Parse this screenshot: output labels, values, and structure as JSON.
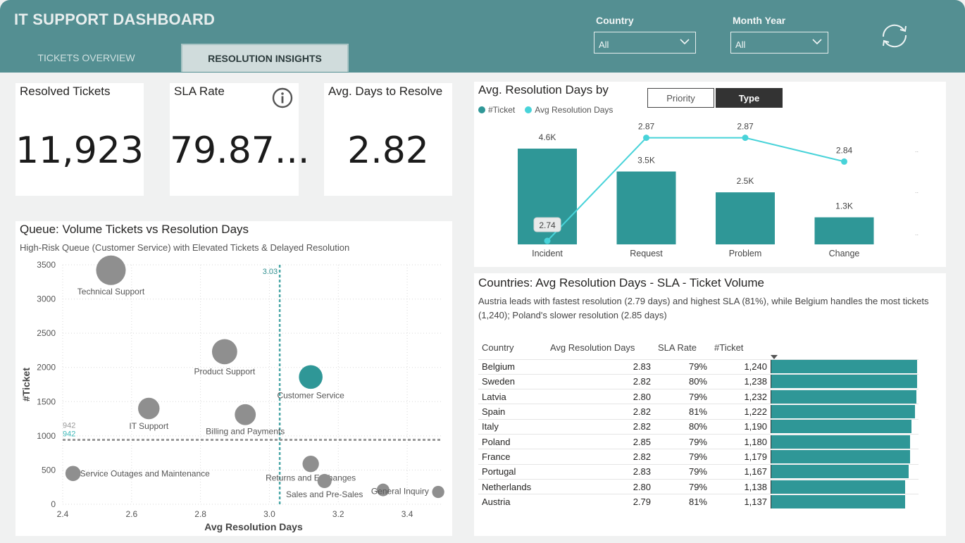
{
  "header": {
    "title": "IT SUPPORT DASHBOARD",
    "tabs": [
      {
        "label": "TICKETS OVERVIEW",
        "active": false
      },
      {
        "label": "RESOLUTION INSIGHTS",
        "active": true
      }
    ],
    "filters": [
      {
        "label": "Country",
        "value": "All"
      },
      {
        "label": "Month Year",
        "value": "All"
      }
    ],
    "refresh_icon": "refresh-icon"
  },
  "kpis": [
    {
      "title": "Resolved Tickets",
      "value": "11,923"
    },
    {
      "title": "SLA Rate",
      "value": "79.87...",
      "icon": "info-icon"
    },
    {
      "title": "Avg. Days to Resolve",
      "value": "2.82"
    }
  ],
  "resolution_chart": {
    "title": "Avg. Resolution Days by",
    "toggle": [
      "Priority",
      "Type"
    ],
    "active_toggle": "Type",
    "legend": [
      "#Ticket",
      "Avg Resolution Days"
    ],
    "colors": {
      "bar": "#2f9797",
      "line": "#48d3d9"
    }
  },
  "queue_chart": {
    "title": "Queue: Volume Tickets vs Resolution Days",
    "subtitle": "High-Risk Queue (Customer Service) with Elevated Tickets & Delayed Resolution",
    "ref_x_label": "3.03",
    "ref_y_label_a": "942",
    "ref_y_label_b": "942"
  },
  "countries": {
    "title": "Countries: Avg Resolution Days - SLA - Ticket Volume",
    "subtitle": "Austria leads with fastest resolution (2.79 days) and highest SLA (81%), while Belgium handles the most tickets (1,240); Poland's slower resolution (2.85 days)",
    "columns": [
      "Country",
      "Avg Resolution Days",
      "SLA Rate",
      "#Ticket"
    ],
    "rows": [
      {
        "country": "Belgium",
        "days": "2.83",
        "sla": "79%",
        "tickets": "1,240",
        "n": 1240
      },
      {
        "country": "Sweden",
        "days": "2.82",
        "sla": "80%",
        "tickets": "1,238",
        "n": 1238
      },
      {
        "country": "Latvia",
        "days": "2.80",
        "sla": "79%",
        "tickets": "1,232",
        "n": 1232
      },
      {
        "country": "Spain",
        "days": "2.82",
        "sla": "81%",
        "tickets": "1,222",
        "n": 1222
      },
      {
        "country": "Italy",
        "days": "2.82",
        "sla": "80%",
        "tickets": "1,190",
        "n": 1190
      },
      {
        "country": "Poland",
        "days": "2.85",
        "sla": "79%",
        "tickets": "1,180",
        "n": 1180
      },
      {
        "country": "France",
        "days": "2.82",
        "sla": "79%",
        "tickets": "1,179",
        "n": 1179
      },
      {
        "country": "Portugal",
        "days": "2.83",
        "sla": "79%",
        "tickets": "1,167",
        "n": 1167
      },
      {
        "country": "Netherlands",
        "days": "2.80",
        "sla": "79%",
        "tickets": "1,138",
        "n": 1138
      },
      {
        "country": "Austria",
        "days": "2.79",
        "sla": "81%",
        "tickets": "1,137",
        "n": 1137
      }
    ]
  },
  "chart_data": [
    {
      "type": "bar",
      "title": "Avg. Resolution Days by",
      "categories": [
        "Incident",
        "Request",
        "Problem",
        "Change"
      ],
      "series": [
        {
          "name": "#Ticket",
          "values": [
            4600,
            3500,
            2500,
            1300
          ],
          "labels": [
            "4.6K",
            "3.5K",
            "2.5K",
            "1.3K"
          ]
        },
        {
          "name": "Avg Resolution Days",
          "type": "line",
          "values": [
            2.74,
            2.87,
            2.87,
            2.84
          ],
          "labels": [
            "2.74",
            "2.87",
            "2.87",
            "2.84"
          ]
        }
      ],
      "legend": "top-left"
    },
    {
      "type": "scatter",
      "title": "Queue: Volume Tickets vs Resolution Days",
      "xlabel": "Avg Resolution Days",
      "ylabel": "#Ticket",
      "xlim": [
        2.4,
        3.5
      ],
      "ylim": [
        0,
        3500
      ],
      "xticks": [
        "2.4",
        "2.6",
        "2.8",
        "3.0",
        "3.2",
        "3.4"
      ],
      "yticks": [
        "0",
        "500",
        "1000",
        "1500",
        "2000",
        "2500",
        "3000",
        "3500"
      ],
      "grid": true,
      "reference_lines": {
        "x": 3.03,
        "y": 942
      },
      "points": [
        {
          "label": "Technical Support",
          "x": 2.54,
          "y": 3420,
          "size": 3420,
          "highlight": false
        },
        {
          "label": "Product Support",
          "x": 2.87,
          "y": 2230,
          "size": 2230,
          "highlight": false
        },
        {
          "label": "Customer Service",
          "x": 3.12,
          "y": 1860,
          "size": 1860,
          "highlight": true
        },
        {
          "label": "IT Support",
          "x": 2.65,
          "y": 1400,
          "size": 1400,
          "highlight": false
        },
        {
          "label": "Billing and Payments",
          "x": 2.93,
          "y": 1310,
          "size": 1310,
          "highlight": false
        },
        {
          "label": "Service Outages and Maintenance",
          "x": 2.43,
          "y": 450,
          "size": 450,
          "highlight": false
        },
        {
          "label": "Returns and Exchanges",
          "x": 3.12,
          "y": 590,
          "size": 590,
          "highlight": false
        },
        {
          "label": "Sales and Pre-Sales",
          "x": 3.16,
          "y": 340,
          "size": 340,
          "highlight": false
        },
        {
          "label": "General Inquiry",
          "x": 3.33,
          "y": 210,
          "size": 210,
          "highlight": false
        },
        {
          "label": "",
          "x": 3.49,
          "y": 180,
          "size": 180,
          "highlight": false
        }
      ],
      "colors": {
        "default": "#8f8f8f",
        "highlight": "#2f9797",
        "ref_x": "#48a6a6",
        "ref_y": "#9a9a9a"
      }
    },
    {
      "type": "table",
      "title": "Countries: Avg Resolution Days - SLA - Ticket Volume",
      "columns": [
        "Country",
        "Avg Resolution Days",
        "SLA Rate",
        "#Ticket"
      ],
      "rows": [
        [
          "Belgium",
          2.83,
          "79%",
          1240
        ],
        [
          "Sweden",
          2.82,
          "80%",
          1238
        ],
        [
          "Latvia",
          2.8,
          "79%",
          1232
        ],
        [
          "Spain",
          2.82,
          "81%",
          1222
        ],
        [
          "Italy",
          2.82,
          "80%",
          1190
        ],
        [
          "Poland",
          2.85,
          "79%",
          1180
        ],
        [
          "France",
          2.82,
          "79%",
          1179
        ],
        [
          "Portugal",
          2.83,
          "79%",
          1167
        ],
        [
          "Netherlands",
          2.8,
          "79%",
          1138
        ],
        [
          "Austria",
          2.79,
          "81%",
          1137
        ]
      ]
    }
  ]
}
